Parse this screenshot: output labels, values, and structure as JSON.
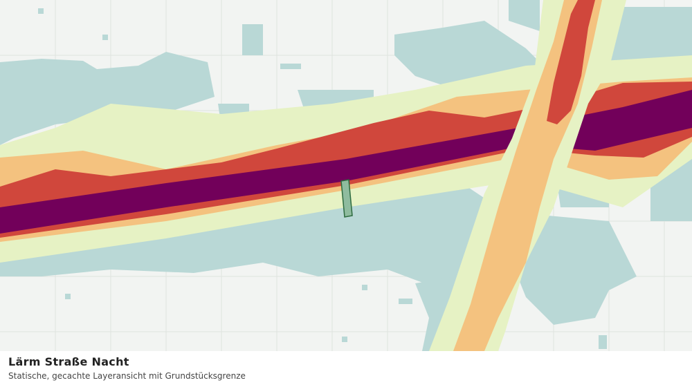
{
  "map": {
    "title": "Lärm Straße Nacht",
    "subtitle": "Statische, gecachte Layeransicht mit Grundstücksgrenze"
  }
}
